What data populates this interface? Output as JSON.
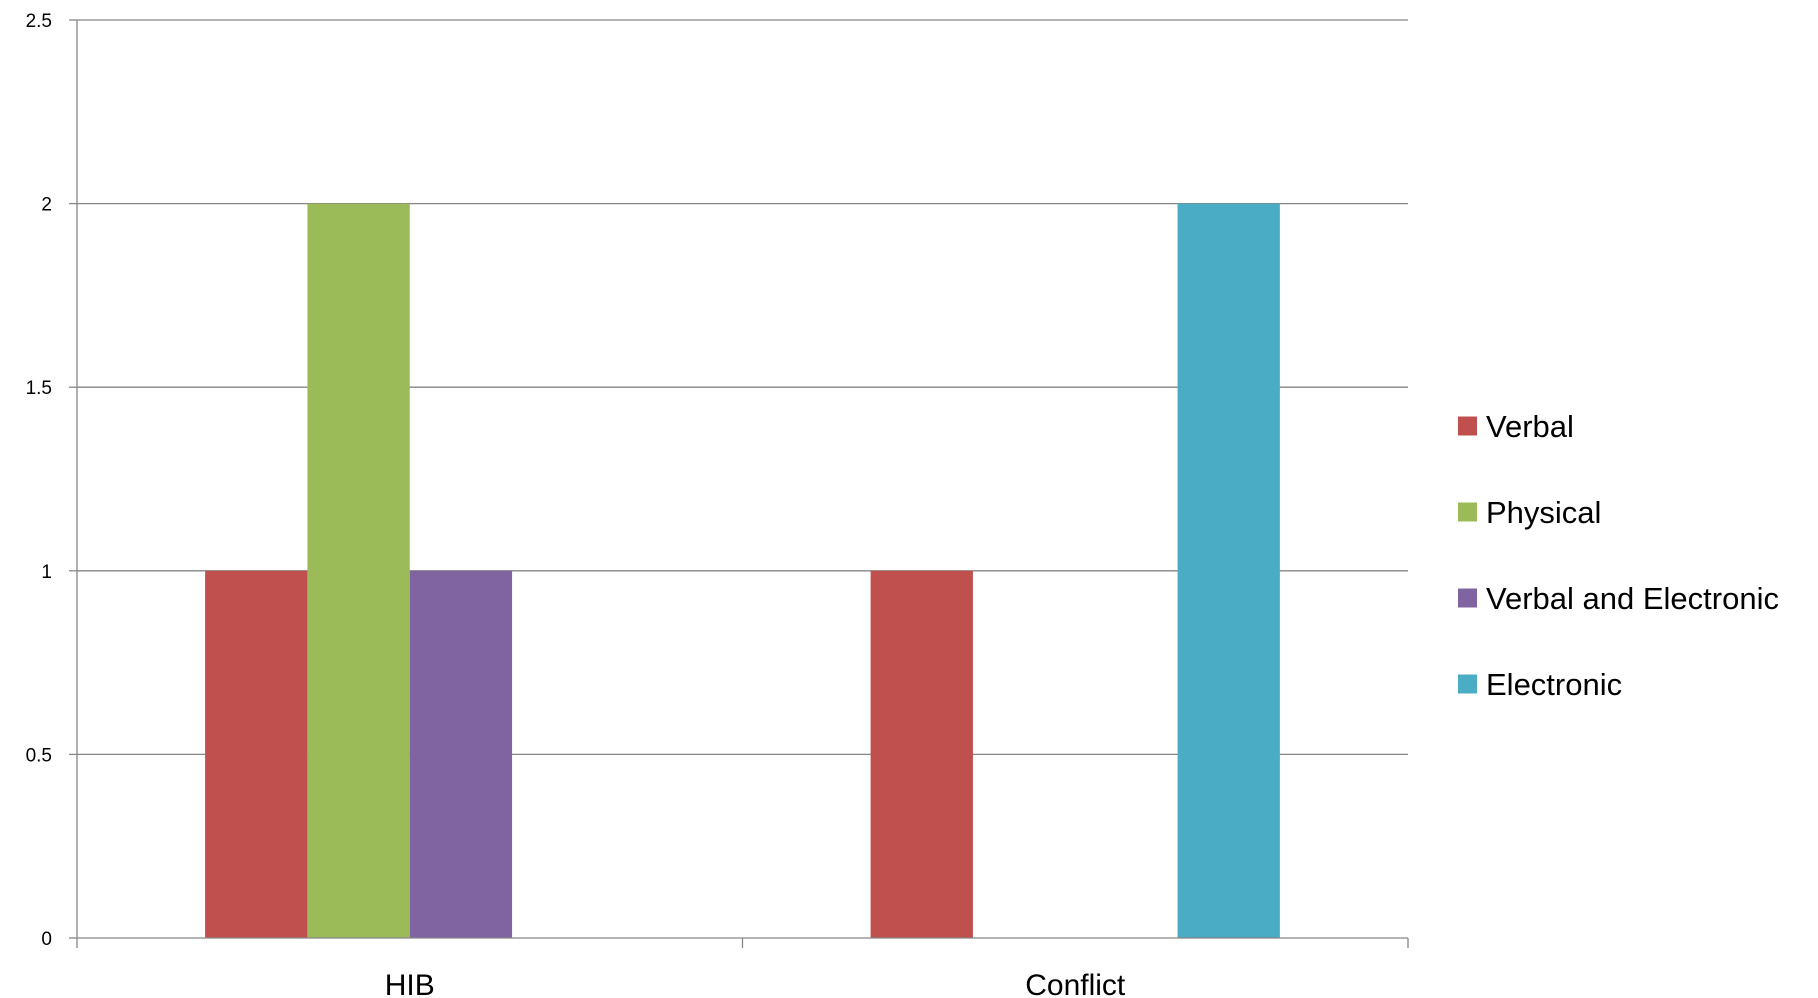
{
  "chart_data": {
    "type": "bar",
    "categories": [
      "HIB",
      "Conflict"
    ],
    "series": [
      {
        "name": "Verbal",
        "values": [
          1,
          1
        ],
        "color": "#c0504d"
      },
      {
        "name": "Physical",
        "values": [
          2,
          0
        ],
        "color": "#9bbb59"
      },
      {
        "name": "Verbal and Electronic",
        "values": [
          1,
          0
        ],
        "color": "#8064a2"
      },
      {
        "name": "Electronic",
        "values": [
          0,
          2
        ],
        "color": "#4bacc6"
      }
    ],
    "ylim": [
      0,
      2.5
    ],
    "yticks": [
      "0",
      "0.5",
      "1",
      "1.5",
      "2",
      "2.5"
    ],
    "ytick_values": [
      0,
      0.5,
      1,
      1.5,
      2,
      2.5
    ],
    "grid": true,
    "legend_position": "right",
    "title": "",
    "xlabel": "",
    "ylabel": ""
  }
}
